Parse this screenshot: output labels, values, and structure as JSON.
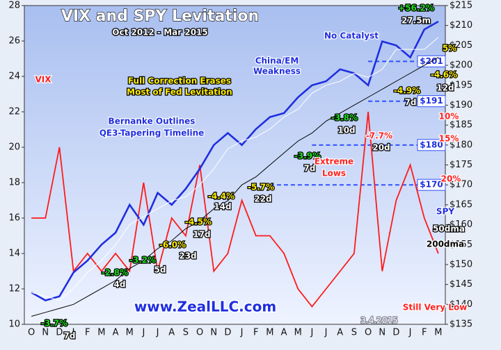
{
  "chart_data": {
    "type": "line",
    "title": "VIX and SPY Levitation",
    "subtitle": "Oct 2012 - Mar 2015",
    "categories": [
      "O",
      "N",
      "D",
      "J",
      "F",
      "M",
      "A",
      "M",
      "J",
      "J",
      "A",
      "S",
      "O",
      "N",
      "D",
      "J",
      "F",
      "M",
      "A",
      "M",
      "J",
      "J",
      "A",
      "S",
      "O",
      "N",
      "D",
      "J",
      "F",
      "M"
    ],
    "ylim": [
      10,
      28
    ],
    "yticks": [
      10,
      12,
      14,
      16,
      18,
      20,
      22,
      24,
      26,
      28
    ],
    "y2lim": [
      135,
      215
    ],
    "y2ticks": [
      {
        "value": 135,
        "label": "$135"
      },
      {
        "value": 140,
        "label": "$140"
      },
      {
        "value": 145,
        "label": "$145"
      },
      {
        "value": 150,
        "label": "$150"
      },
      {
        "value": 155,
        "label": "$155"
      },
      {
        "value": 160,
        "label": "$160"
      },
      {
        "value": 165,
        "label": "$165"
      },
      {
        "value": 170,
        "label": "$170"
      },
      {
        "value": 175,
        "label": "$175"
      },
      {
        "value": 180,
        "label": "$180"
      },
      {
        "value": 185,
        "label": "$185"
      },
      {
        "value": 190,
        "label": "$190"
      },
      {
        "value": 195,
        "label": "$195"
      },
      {
        "value": 200,
        "label": "$200"
      },
      {
        "value": 205,
        "label": "$205"
      },
      {
        "value": 210,
        "label": "$210"
      },
      {
        "value": 215,
        "label": "$215"
      }
    ],
    "series": [
      {
        "name": "VIX",
        "color": "#ff1a1a",
        "values": [
          16,
          16,
          20,
          13,
          14,
          13,
          14,
          13,
          18,
          13,
          16,
          15,
          19,
          13,
          14,
          17,
          15,
          15,
          14,
          12,
          11,
          12,
          13,
          14,
          22,
          13,
          17,
          19,
          16,
          14
        ]
      },
      {
        "name": "SPY",
        "color": "#1f2ee0",
        "axis": "y2",
        "values": [
          143,
          141,
          142,
          148,
          151,
          155,
          158,
          165,
          160,
          168,
          165,
          169,
          174,
          180,
          183,
          180,
          184,
          187,
          188,
          192,
          195,
          196,
          199,
          198,
          195,
          206,
          205,
          202,
          209,
          211
        ]
      },
      {
        "name": "50dma",
        "color": "#ffffff",
        "axis": "y2",
        "values": [
          143,
          142,
          141,
          144,
          148,
          151,
          155,
          160,
          162,
          164,
          166,
          167,
          170,
          174,
          179,
          181,
          182,
          184,
          187,
          189,
          193,
          195,
          196,
          198,
          197,
          199,
          204,
          204,
          204,
          207
        ]
      },
      {
        "name": "200dma",
        "color": "#000000",
        "axis": "y2",
        "values": [
          137,
          138,
          139,
          140,
          142,
          144,
          146,
          149,
          151,
          154,
          156,
          159,
          161,
          164,
          166,
          170,
          172,
          175,
          178,
          181,
          183,
          186,
          188,
          190,
          192,
          194,
          196,
          198,
          200,
          202
        ]
      }
    ],
    "reference_lines": [
      {
        "value": 170,
        "label": "$170"
      },
      {
        "value": 180,
        "label": "$180"
      },
      {
        "value": 191,
        "label": "$191"
      },
      {
        "value": 201,
        "label": "$201"
      }
    ],
    "annotations": [
      "-3.7%",
      "7d",
      "-2.8%",
      "4d",
      "-3.2%",
      "5d",
      "-6.0%",
      "23d",
      "-4.5%",
      "17d",
      "-4.4%",
      "14d",
      "-5.7%",
      "22d",
      "-3.9%",
      "7d",
      "-3.8%",
      "10d",
      "-7.7%",
      "20d",
      "-4.9%",
      "7d",
      "-4.6%",
      "12d",
      "+56.2%",
      "27.5m",
      "5%",
      "10%",
      "15%",
      "20%",
      "Bernanke Outlines",
      "QE3-Tapering Timeline",
      "Full Correction Erases",
      "Most of Fed Levitation",
      "China/EM",
      "Weakness",
      "No Catalyst",
      "Extreme",
      "Lows",
      "Still Very Low",
      "www.ZealLLC.com",
      "3.4.2015"
    ]
  }
}
